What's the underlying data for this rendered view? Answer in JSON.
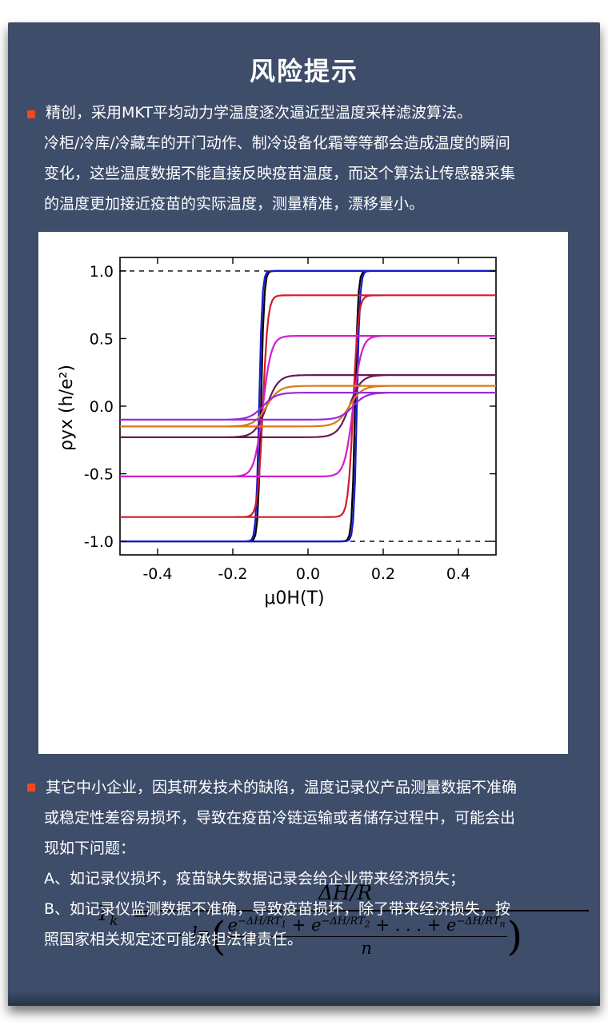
{
  "title": "风险提示",
  "intro": {
    "lines": [
      "精创，采用MKT平均动力学温度逐次逼近型温度采样滤波算法。",
      "冷柜/冷库/冷藏车的开门动作、制冷设备化霜等等都会造成温度的瞬间",
      "变化，这些温度数据不能直接反映疫苗温度，而这个算法让传感器采集",
      "的温度更加接近疫苗的实际温度，测量精准，漂移量小。"
    ]
  },
  "chart_data": {
    "type": "line",
    "title": "",
    "xlabel": "μ0H(T)",
    "ylabel": "ρyx (h/e²)",
    "xlim": [
      -0.5,
      0.5
    ],
    "ylim": [
      -1.1,
      1.1
    ],
    "xticks": [
      "-0.4",
      "-0.2",
      "0.0",
      "0.2",
      "0.4"
    ],
    "yticks": [
      "1.0",
      "0.5",
      "0.0",
      "-0.5",
      "-1.0"
    ],
    "reference_lines": [
      1.0,
      -1.0
    ],
    "grid": false,
    "series": [
      {
        "color": "#000000",
        "saturation": 1.0,
        "coercive_field": 0.125
      },
      {
        "color": "#1a1ad0",
        "saturation": 1.0,
        "coercive_field": 0.13
      },
      {
        "color": "#d01c2c",
        "saturation": 0.82,
        "coercive_field": 0.12
      },
      {
        "color": "#d21ccf",
        "saturation": 0.52,
        "coercive_field": 0.12
      },
      {
        "color": "#6a1a52",
        "saturation": 0.23,
        "coercive_field": 0.11
      },
      {
        "color": "#d97a1a",
        "saturation": 0.15,
        "coercive_field": 0.11
      },
      {
        "color": "#9a2ad8",
        "saturation": 0.1,
        "coercive_field": 0.12
      }
    ]
  },
  "formula": {
    "lhs": "T",
    "lhs_sub": "k",
    "equals": "=",
    "numerator": "ΔH/R",
    "denominator_prefix": "−ln",
    "term1": "e",
    "term1_exp": "−ΔH/RT",
    "term1_sub": "1",
    "plus": "+",
    "term2": "e",
    "term2_exp": "−ΔH/RT",
    "term2_sub": "2",
    "ellipsis": "+ . . . +",
    "term3": "e",
    "term3_exp": "−ΔH/RT",
    "term3_sub": "n",
    "inner_denominator": "n"
  },
  "problems": {
    "lines": [
      "其它中小企业，因其研发技术的缺陷，温度记录仪产品测量数据不准确",
      "或稳定性差容易损坏，导致在疫苗冷链运输或者储存过程中，可能会出",
      "现如下问题："
    ],
    "item_a": "A、如记录仪损坏，疫苗缺失数据记录会给企业带来经济损失；",
    "item_b_lines": [
      "B、如记录仪监测数据不准确，导致疫苗损坏，除了带来经济损失，按",
      "照国家相关规定还可能承担法律责任。"
    ]
  }
}
